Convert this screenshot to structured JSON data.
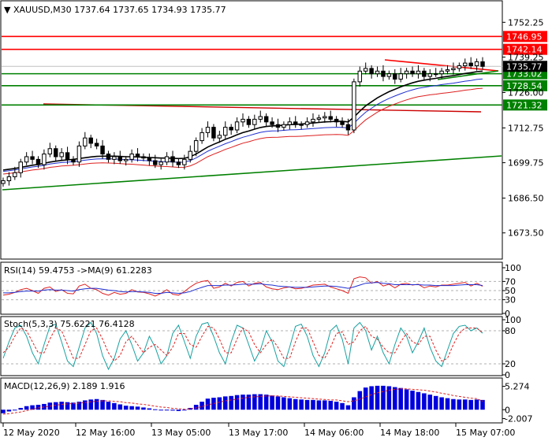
{
  "header": {
    "symbol": "XAUUSD,M30",
    "open": "1737.64",
    "high": "1737.65",
    "low": "1734.93",
    "close": "1735.77"
  },
  "chart_data": [
    {
      "type": "candlestick",
      "name": "price",
      "ylim": [
        1664,
        1760
      ],
      "yticks": [
        "1752.25",
        "1739.25",
        "1726.00",
        "1712.75",
        "1699.75",
        "1686.50",
        "1673.50"
      ],
      "ytick_values": [
        1752.25,
        1739.25,
        1726.0,
        1712.75,
        1699.75,
        1686.5,
        1673.5
      ],
      "xticks": [
        "12 May 2020",
        "12 May 16:00",
        "13 May 05:00",
        "13 May 17:00",
        "14 May 06:00",
        "14 May 18:00",
        "15 May 07:00"
      ],
      "levels": [
        {
          "label": "1746.95",
          "value": 1746.95,
          "color": "#ff0000"
        },
        {
          "label": "1742.14",
          "value": 1742.14,
          "color": "#ff0000"
        },
        {
          "label": "1733.02",
          "value": 1733.02,
          "color": "#008000"
        },
        {
          "label": "1728.54",
          "value": 1728.54,
          "color": "#008000"
        },
        {
          "label": "1721.32",
          "value": 1721.32,
          "color": "#008000"
        }
      ],
      "current_price": {
        "label": "1735.77",
        "value": 1735.77
      },
      "close_series": [
        1693.0,
        1694.5,
        1696.0,
        1700.0,
        1702.0,
        1701.0,
        1699.0,
        1703.0,
        1705.0,
        1702.0,
        1703.5,
        1701.0,
        1700.0,
        1706.0,
        1709.0,
        1707.0,
        1706.0,
        1703.0,
        1701.0,
        1702.0,
        1700.5,
        1701.0,
        1703.0,
        1702.0,
        1701.5,
        1700.5,
        1699.0,
        1700.0,
        1702.0,
        1700.0,
        1699.0,
        1701.0,
        1704.0,
        1708.0,
        1711.0,
        1713.0,
        1709.0,
        1710.0,
        1713.0,
        1712.0,
        1715.0,
        1716.0,
        1714.0,
        1716.0,
        1717.0,
        1715.0,
        1714.0,
        1713.0,
        1714.0,
        1715.0,
        1714.0,
        1714.0,
        1715.0,
        1716.0,
        1716.5,
        1717.0,
        1716.0,
        1715.0,
        1714.0,
        1712.0,
        1730.0,
        1734.0,
        1735.0,
        1733.0,
        1734.0,
        1732.0,
        1733.0,
        1731.0,
        1733.0,
        1734.0,
        1733.0,
        1734.0,
        1732.0,
        1733.0,
        1733.0,
        1734.0,
        1734.5,
        1735.0,
        1736.0,
        1737.0,
        1736.0,
        1737.5,
        1735.77
      ],
      "ema_black": [
        1697.0,
        1697.3,
        1697.6,
        1698.0,
        1698.4,
        1698.8,
        1699.1,
        1699.5,
        1700.0,
        1700.3,
        1700.6,
        1700.8,
        1701.0,
        1701.3,
        1701.6,
        1701.9,
        1702.1,
        1702.2,
        1702.2,
        1702.2,
        1702.1,
        1702.0,
        1702.0,
        1701.9,
        1701.8,
        1701.7,
        1701.6,
        1701.5,
        1701.5,
        1701.4,
        1701.3,
        1701.4,
        1702.0,
        1703.0,
        1704.3,
        1705.6,
        1706.6,
        1707.5,
        1708.5,
        1709.3,
        1710.2,
        1711.0,
        1711.6,
        1712.3,
        1712.9,
        1713.3,
        1713.5,
        1713.6,
        1713.8,
        1714.0,
        1714.1,
        1714.2,
        1714.4,
        1714.6,
        1714.8,
        1715.0,
        1715.1,
        1715.2,
        1715.2,
        1715.0,
        1716.8,
        1719.0,
        1721.0,
        1722.5,
        1724.0,
        1725.2,
        1726.3,
        1727.2,
        1728.1,
        1728.9,
        1729.6,
        1730.2,
        1730.6,
        1731.0,
        1731.3,
        1731.7,
        1732.0,
        1732.3,
        1732.7,
        1733.1,
        1733.4,
        1733.8,
        1734.0
      ]
    },
    {
      "type": "line",
      "name": "rsi",
      "title": "RSI(14) 59.4753  ->MA(9) 61.2283",
      "ylim": [
        0,
        100
      ],
      "yticks": [
        "100",
        "70",
        "50",
        "30",
        "0"
      ],
      "ytick_values": [
        100,
        70,
        50,
        30,
        0
      ],
      "series": [
        {
          "values": [
            40,
            42,
            46,
            52,
            55,
            50,
            44,
            55,
            58,
            48,
            52,
            44,
            43,
            60,
            64,
            55,
            52,
            44,
            40,
            46,
            42,
            44,
            52,
            47,
            46,
            43,
            38,
            44,
            52,
            42,
            40,
            48,
            58,
            66,
            70,
            72,
            55,
            58,
            66,
            60,
            68,
            70,
            60,
            66,
            68,
            58,
            54,
            52,
            56,
            58,
            54,
            55,
            58,
            62,
            63,
            64,
            58,
            54,
            50,
            44,
            76,
            80,
            78,
            66,
            70,
            60,
            64,
            56,
            64,
            66,
            62,
            64,
            56,
            60,
            58,
            62,
            62,
            64,
            66,
            68,
            60,
            66,
            59.5
          ]
        },
        {
          "values": [
            45,
            45,
            46,
            48,
            49,
            49,
            49,
            51,
            52,
            51,
            51,
            50,
            49,
            52,
            54,
            55,
            55,
            53,
            51,
            50,
            48,
            47,
            48,
            48,
            47,
            46,
            44,
            44,
            46,
            45,
            44,
            45,
            48,
            53,
            57,
            61,
            61,
            61,
            62,
            62,
            63,
            64,
            64,
            64,
            65,
            63,
            62,
            60,
            59,
            58,
            57,
            57,
            57,
            58,
            59,
            60,
            60,
            59,
            57,
            55,
            58,
            62,
            66,
            67,
            68,
            66,
            65,
            63,
            63,
            63,
            63,
            63,
            62,
            62,
            61,
            61,
            61,
            61,
            62,
            63,
            63,
            63,
            61.2
          ]
        }
      ]
    },
    {
      "type": "line",
      "name": "stochastic",
      "title": "Stoch(5,3,3) 75.6221 76.4128",
      "ylim": [
        0,
        100
      ],
      "yticks": [
        "100",
        "80",
        "20",
        "0"
      ],
      "ytick_values": [
        100,
        80,
        20,
        0
      ],
      "series": [
        {
          "values": [
            30,
            60,
            85,
            90,
            70,
            40,
            20,
            55,
            88,
            92,
            60,
            25,
            15,
            50,
            85,
            95,
            75,
            35,
            10,
            30,
            65,
            80,
            55,
            25,
            40,
            70,
            50,
            20,
            35,
            75,
            90,
            60,
            30,
            70,
            92,
            95,
            70,
            40,
            20,
            60,
            90,
            85,
            55,
            25,
            45,
            80,
            60,
            25,
            15,
            50,
            88,
            92,
            70,
            35,
            15,
            40,
            80,
            90,
            65,
            20,
            85,
            95,
            80,
            45,
            70,
            40,
            20,
            55,
            85,
            70,
            40,
            60,
            85,
            50,
            25,
            15,
            45,
            75,
            88,
            90,
            80,
            85,
            75.6
          ]
        },
        {
          "values": [
            40,
            50,
            70,
            85,
            80,
            60,
            40,
            40,
            65,
            85,
            80,
            55,
            30,
            30,
            55,
            80,
            85,
            65,
            40,
            25,
            35,
            60,
            70,
            55,
            40,
            50,
            55,
            45,
            35,
            50,
            75,
            75,
            55,
            50,
            70,
            88,
            85,
            65,
            40,
            40,
            65,
            85,
            78,
            55,
            40,
            55,
            65,
            50,
            30,
            30,
            60,
            85,
            85,
            60,
            35,
            30,
            50,
            75,
            78,
            55,
            60,
            80,
            88,
            70,
            65,
            50,
            40,
            40,
            60,
            75,
            60,
            55,
            70,
            70,
            45,
            25,
            30,
            55,
            75,
            85,
            85,
            85,
            76.4
          ]
        }
      ]
    },
    {
      "type": "bar",
      "name": "macd",
      "title": "MACD(12,26,9) 2.189 1.916",
      "ylim": [
        -2.8,
        6.8
      ],
      "yticks": [
        "5.274",
        "0",
        "-2.007"
      ],
      "ytick_values": [
        5.274,
        0,
        -2.007
      ],
      "histogram": [
        -0.8,
        -0.4,
        0.0,
        0.4,
        0.8,
        1.0,
        1.1,
        1.3,
        1.6,
        1.7,
        1.8,
        1.7,
        1.6,
        1.8,
        2.1,
        2.3,
        2.4,
        2.2,
        1.8,
        1.5,
        1.2,
        0.9,
        0.8,
        0.7,
        0.5,
        0.3,
        0.1,
        0.0,
        0.0,
        -0.2,
        -0.3,
        -0.1,
        0.4,
        1.1,
        1.8,
        2.5,
        2.7,
        2.8,
        3.0,
        3.1,
        3.3,
        3.4,
        3.4,
        3.5,
        3.5,
        3.4,
        3.2,
        3.0,
        2.8,
        2.6,
        2.4,
        2.3,
        2.2,
        2.2,
        2.1,
        2.1,
        2.0,
        1.8,
        1.5,
        1.0,
        2.8,
        4.2,
        5.0,
        5.3,
        5.4,
        5.4,
        5.3,
        5.1,
        4.9,
        4.6,
        4.3,
        4.0,
        3.7,
        3.4,
        3.1,
        2.8,
        2.6,
        2.4,
        2.3,
        2.3,
        2.2,
        2.3,
        2.2
      ],
      "signal": [
        -1.0,
        -0.9,
        -0.7,
        -0.5,
        -0.2,
        0.1,
        0.4,
        0.6,
        0.8,
        1.0,
        1.2,
        1.3,
        1.4,
        1.5,
        1.6,
        1.8,
        1.9,
        2.0,
        2.0,
        1.9,
        1.8,
        1.6,
        1.5,
        1.3,
        1.2,
        1.0,
        0.8,
        0.6,
        0.5,
        0.3,
        0.2,
        0.1,
        0.2,
        0.4,
        0.7,
        1.1,
        1.4,
        1.7,
        2.0,
        2.2,
        2.4,
        2.6,
        2.8,
        2.9,
        3.0,
        3.1,
        3.1,
        3.1,
        3.0,
        2.9,
        2.8,
        2.7,
        2.6,
        2.5,
        2.4,
        2.3,
        2.2,
        2.2,
        2.0,
        1.8,
        2.0,
        2.4,
        2.9,
        3.4,
        3.8,
        4.1,
        4.4,
        4.6,
        4.7,
        4.7,
        4.6,
        4.5,
        4.4,
        4.2,
        4.0,
        3.7,
        3.5,
        3.2,
        3.0,
        2.8,
        2.6,
        2.5,
        1.9
      ]
    }
  ]
}
